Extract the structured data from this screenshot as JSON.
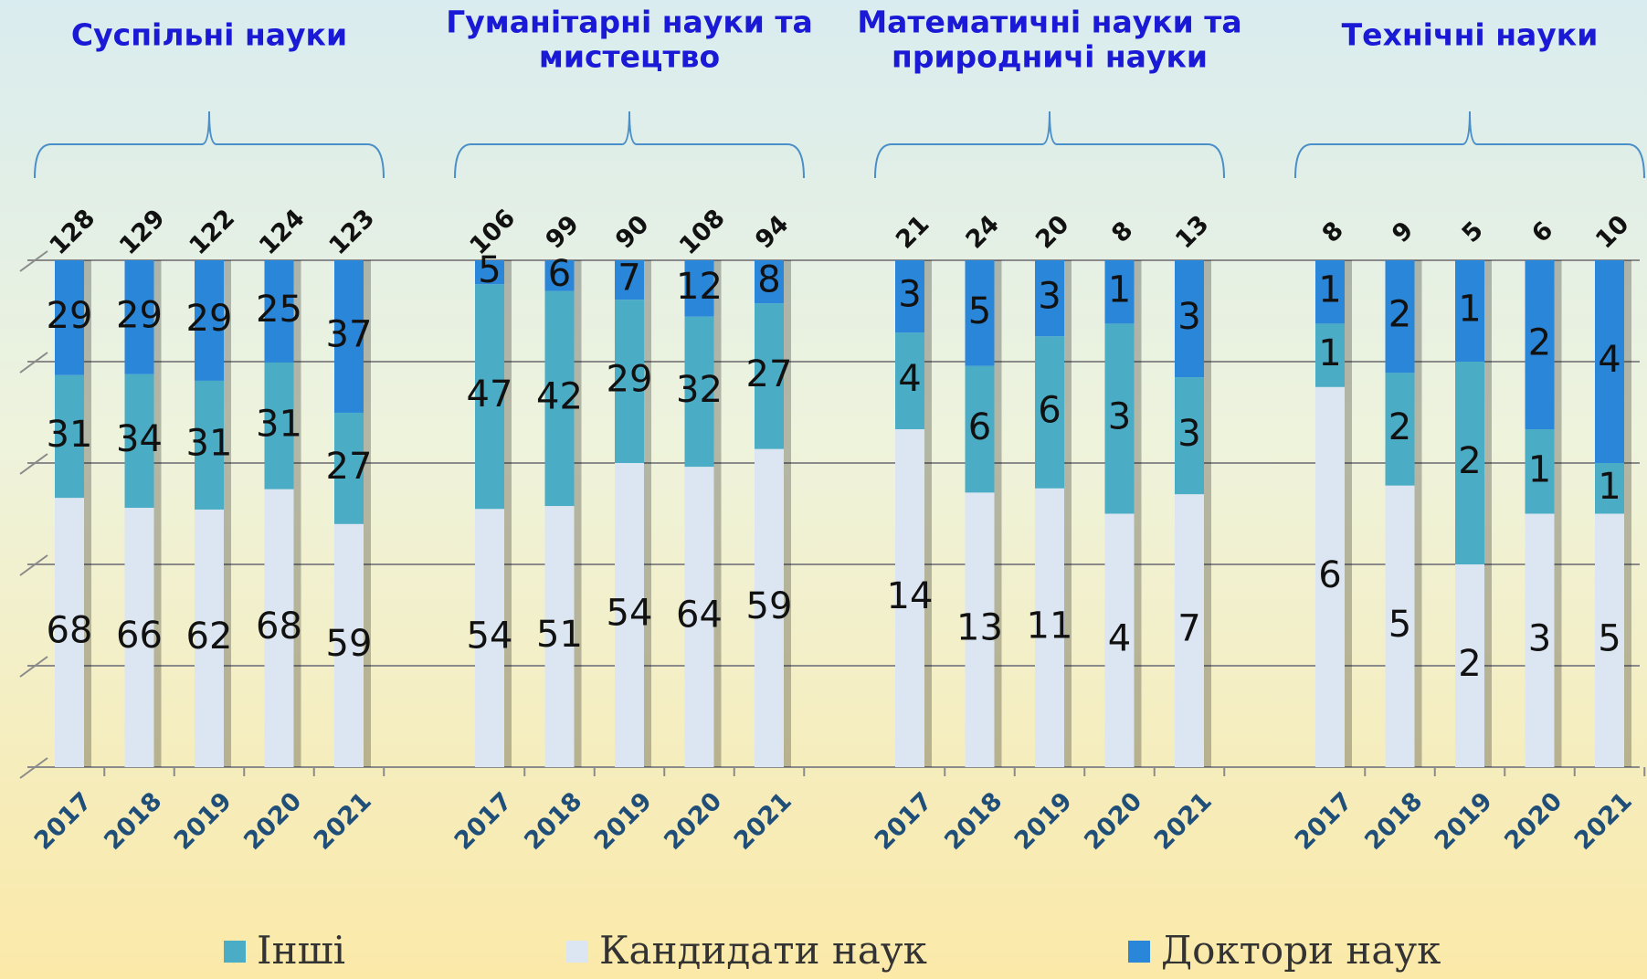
{
  "chart_data": [
    {
      "type": "bar",
      "stacked": "percent",
      "title": [
        "Суспільні науки"
      ],
      "categories": [
        "2017",
        "2018",
        "2019",
        "2020",
        "2021"
      ],
      "totals": [
        128,
        129,
        122,
        124,
        123
      ],
      "series": [
        {
          "name": "Інші",
          "color": "#4bacc6",
          "values": [
            31,
            34,
            31,
            31,
            27
          ]
        },
        {
          "name": "Кандидати наук",
          "color": "#dce6f2",
          "values": [
            68,
            66,
            62,
            68,
            59
          ]
        },
        {
          "name": "Доктори наук",
          "color": "#2a86d8",
          "values": [
            29,
            29,
            29,
            25,
            37
          ]
        }
      ],
      "ylim": [
        0,
        100
      ],
      "yticks": [
        0,
        20,
        40,
        60,
        80,
        100
      ],
      "grid": true
    },
    {
      "type": "bar",
      "stacked": "percent",
      "title": [
        "Гуманітарні науки та",
        "мистецтво"
      ],
      "categories": [
        "2017",
        "2018",
        "2019",
        "2020",
        "2021"
      ],
      "totals": [
        106,
        99,
        90,
        108,
        94
      ],
      "series": [
        {
          "name": "Інші",
          "color": "#4bacc6",
          "values": [
            47,
            42,
            29,
            32,
            27
          ]
        },
        {
          "name": "Кандидати наук",
          "color": "#dce6f2",
          "values": [
            54,
            51,
            54,
            64,
            59
          ]
        },
        {
          "name": "Доктори наук",
          "color": "#2a86d8",
          "values": [
            5,
            6,
            7,
            12,
            8
          ]
        }
      ],
      "ylim": [
        0,
        100
      ],
      "yticks": [
        0,
        20,
        40,
        60,
        80,
        100
      ],
      "grid": true
    },
    {
      "type": "bar",
      "stacked": "percent",
      "title": [
        "Математичні науки та",
        "природничі науки"
      ],
      "categories": [
        "2017",
        "2018",
        "2019",
        "2020",
        "2021"
      ],
      "totals": [
        21,
        24,
        20,
        8,
        13
      ],
      "series": [
        {
          "name": "Інші",
          "color": "#4bacc6",
          "values": [
            4,
            6,
            6,
            3,
            3
          ]
        },
        {
          "name": "Кандидати наук",
          "color": "#dce6f2",
          "values": [
            14,
            13,
            11,
            4,
            7
          ]
        },
        {
          "name": "Доктори наук",
          "color": "#2a86d8",
          "values": [
            3,
            5,
            3,
            1,
            3
          ]
        }
      ],
      "ylim": [
        0,
        100
      ],
      "yticks": [
        0,
        20,
        40,
        60,
        80,
        100
      ],
      "grid": true
    },
    {
      "type": "bar",
      "stacked": "percent",
      "title": [
        "Технічні науки"
      ],
      "categories": [
        "2017",
        "2018",
        "2019",
        "2020",
        "2021"
      ],
      "totals": [
        8,
        9,
        5,
        6,
        10
      ],
      "series": [
        {
          "name": "Інші",
          "color": "#4bacc6",
          "values": [
            1,
            2,
            2,
            1,
            1
          ]
        },
        {
          "name": "Кандидати наук",
          "color": "#dce6f2",
          "values": [
            6,
            5,
            2,
            3,
            5
          ]
        },
        {
          "name": "Доктори наук",
          "color": "#2a86d8",
          "values": [
            1,
            2,
            1,
            2,
            4
          ]
        }
      ],
      "ylim": [
        0,
        100
      ],
      "yticks": [
        0,
        20,
        40,
        60,
        80,
        100
      ],
      "grid": true
    }
  ]
}
